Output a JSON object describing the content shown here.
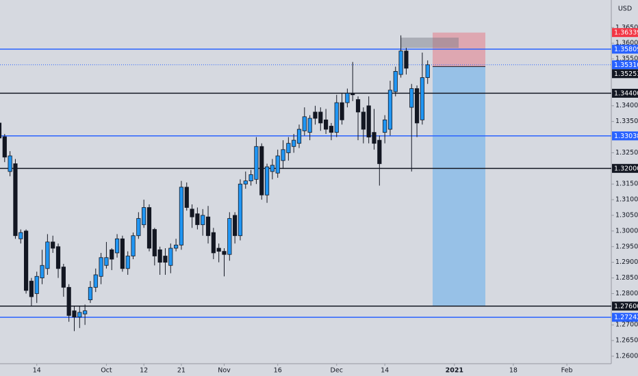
{
  "chart_data": {
    "type": "candlestick",
    "axis_unit": "USD",
    "x": [
      0,
      1,
      2,
      3,
      4,
      5,
      6,
      7,
      8,
      9,
      10,
      11,
      12,
      13,
      14,
      15,
      16,
      17,
      18,
      19,
      20,
      21,
      22,
      23,
      24,
      25,
      26,
      27,
      28,
      29,
      30,
      31,
      32,
      33,
      34,
      35,
      36,
      37,
      38,
      39,
      40,
      41,
      42,
      43,
      44,
      45,
      46,
      47,
      48,
      49,
      50,
      51,
      52,
      53,
      54,
      55,
      56,
      57,
      58,
      59,
      60,
      61,
      62,
      63,
      64,
      65,
      66,
      67,
      68,
      69,
      70,
      71,
      72,
      73,
      74,
      75,
      76,
      77,
      78,
      79,
      80
    ],
    "open": [
      1.3345,
      1.3301,
      1.319,
      1.3215,
      1.2975,
      1.3,
      1.284,
      1.28,
      1.285,
      1.288,
      1.2965,
      1.295,
      1.2885,
      1.282,
      1.2745,
      1.2725,
      1.2735,
      1.278,
      1.282,
      1.2855,
      1.289,
      1.294,
      1.293,
      1.2975,
      1.288,
      1.292,
      1.2985,
      1.302,
      1.3075,
      1.3005,
      1.294,
      1.292,
      1.289,
      1.2945,
      1.2955,
      1.314,
      1.307,
      1.3055,
      1.302,
      1.3045,
      1.2995,
      1.2945,
      1.2935,
      1.2925,
      1.305,
      1.2985,
      1.315,
      1.316,
      1.3165,
      1.327,
      1.3115,
      1.319,
      1.3185,
      1.3225,
      1.325,
      1.327,
      1.328,
      1.332,
      1.3315,
      1.338,
      1.338,
      1.3355,
      1.3335,
      1.3315,
      1.341,
      1.341,
      1.344,
      1.342,
      1.338,
      1.34,
      1.3315,
      1.329,
      1.3315,
      1.3325,
      1.3445,
      1.35,
      1.3575,
      1.3395,
      1.3455,
      1.3355,
      1.349
    ],
    "high": [
      1.3355,
      1.331,
      1.3255,
      1.323,
      1.3005,
      1.3005,
      1.285,
      1.287,
      1.294,
      1.299,
      1.2985,
      1.296,
      1.2895,
      1.283,
      1.276,
      1.276,
      1.2765,
      1.284,
      1.288,
      1.293,
      1.2965,
      1.2945,
      1.299,
      1.2985,
      1.2935,
      1.2995,
      1.306,
      1.31,
      1.3085,
      1.301,
      1.295,
      1.2945,
      1.296,
      1.2975,
      1.316,
      1.3155,
      1.3085,
      1.3075,
      1.307,
      1.308,
      1.301,
      1.296,
      1.2945,
      1.306,
      1.306,
      1.3165,
      1.319,
      1.3195,
      1.33,
      1.328,
      1.3215,
      1.323,
      1.326,
      1.329,
      1.33,
      1.331,
      1.334,
      1.3395,
      1.337,
      1.34,
      1.3395,
      1.339,
      1.3345,
      1.3435,
      1.344,
      1.3455,
      1.354,
      1.343,
      1.3395,
      1.343,
      1.339,
      1.3305,
      1.337,
      1.348,
      1.3525,
      1.3625,
      1.3585,
      1.347,
      1.3465,
      1.357,
      1.3545
    ],
    "low": [
      1.3285,
      1.322,
      1.3175,
      1.2975,
      1.296,
      1.28,
      1.276,
      1.277,
      1.283,
      1.286,
      1.293,
      1.285,
      1.279,
      1.271,
      1.268,
      1.269,
      1.27,
      1.277,
      1.2805,
      1.283,
      1.288,
      1.2875,
      1.2915,
      1.287,
      1.286,
      1.291,
      1.2975,
      1.301,
      1.2935,
      1.289,
      1.286,
      1.286,
      1.2865,
      1.2935,
      1.294,
      1.3065,
      1.301,
      1.3005,
      1.2985,
      1.296,
      1.291,
      1.29,
      1.2855,
      1.2905,
      1.296,
      1.297,
      1.3135,
      1.3145,
      1.315,
      1.31,
      1.309,
      1.3165,
      1.317,
      1.32,
      1.3225,
      1.325,
      1.3265,
      1.3305,
      1.329,
      1.334,
      1.332,
      1.331,
      1.329,
      1.33,
      1.334,
      1.3395,
      1.3415,
      1.329,
      1.328,
      1.328,
      1.326,
      1.3145,
      1.328,
      1.3305,
      1.343,
      1.349,
      1.35,
      1.319,
      1.33,
      1.334,
      1.347
    ],
    "close": [
      1.3297,
      1.3236,
      1.324,
      1.2985,
      1.2995,
      1.281,
      1.279,
      1.2855,
      1.289,
      1.2965,
      1.2945,
      1.288,
      1.282,
      1.273,
      1.2725,
      1.274,
      1.2745,
      1.282,
      1.286,
      1.2915,
      1.2915,
      1.291,
      1.2975,
      1.288,
      1.292,
      1.2985,
      1.304,
      1.3075,
      1.2945,
      1.292,
      1.29,
      1.29,
      1.2945,
      1.2955,
      1.314,
      1.3075,
      1.3045,
      1.302,
      1.305,
      1.2985,
      1.293,
      1.2935,
      1.2925,
      1.304,
      1.2985,
      1.315,
      1.316,
      1.318,
      1.327,
      1.3115,
      1.3205,
      1.321,
      1.324,
      1.326,
      1.328,
      1.329,
      1.3325,
      1.3365,
      1.336,
      1.336,
      1.3345,
      1.3325,
      1.3315,
      1.341,
      1.3355,
      1.344,
      1.3435,
      1.338,
      1.3325,
      1.33,
      1.328,
      1.3215,
      1.3355,
      1.345,
      1.351,
      1.3575,
      1.352,
      1.3455,
      1.3345,
      1.349,
      1.3531
    ],
    "up_color": "#2196f3",
    "down_color": "#131722",
    "xlim": [
      0.13,
      114.3
    ],
    "xticks": [
      {
        "value": 7,
        "label": "14"
      },
      {
        "value": 20,
        "label": "Oct"
      },
      {
        "value": 27,
        "label": "12"
      },
      {
        "value": 34,
        "label": "21"
      },
      {
        "value": 42,
        "label": "Nov"
      },
      {
        "value": 52,
        "label": "16"
      },
      {
        "value": 63,
        "label": "Dec"
      },
      {
        "value": 72,
        "label": "14"
      },
      {
        "value": 85,
        "label": "2021"
      },
      {
        "value": 96,
        "label": "18"
      },
      {
        "value": 106,
        "label": "Feb"
      }
    ],
    "ylim": [
      1.2576,
      1.3738
    ],
    "yticks": [
      {
        "value": 1.365,
        "label": "1.36500"
      },
      {
        "value": 1.36,
        "label": "1.36000"
      },
      {
        "value": 1.355,
        "label": "1.35500"
      },
      {
        "value": 1.34,
        "label": "1.34000"
      },
      {
        "value": 1.335,
        "label": "1.33500"
      },
      {
        "value": 1.325,
        "label": "1.32500"
      },
      {
        "value": 1.315,
        "label": "1.31500"
      },
      {
        "value": 1.31,
        "label": "1.31000"
      },
      {
        "value": 1.305,
        "label": "1.30500"
      },
      {
        "value": 1.3,
        "label": "1.30000"
      },
      {
        "value": 1.295,
        "label": "1.29500"
      },
      {
        "value": 1.29,
        "label": "1.29000"
      },
      {
        "value": 1.285,
        "label": "1.28500"
      },
      {
        "value": 1.28,
        "label": "1.28000"
      },
      {
        "value": 1.27,
        "label": "1.27000"
      },
      {
        "value": 1.265,
        "label": "1.26500"
      },
      {
        "value": 1.26,
        "label": "1.26000"
      }
    ],
    "levels": [
      {
        "value": 1.36339,
        "color": "#f23645",
        "style": "none"
      },
      {
        "value": 1.35809,
        "color": "#2962ff",
        "style": "solid"
      },
      {
        "value": 1.3531,
        "label": "1.35310",
        "color": "#2962ff",
        "style": "dotted"
      },
      {
        "value": 1.35253,
        "color": "#131722",
        "style": "none"
      },
      {
        "value": 1.344,
        "label": "1.34400",
        "color": "#131722",
        "style": "solid"
      },
      {
        "value": 1.33038,
        "color": "#2962ff",
        "style": "solid"
      },
      {
        "value": 1.32,
        "label": "1.32000",
        "color": "#131722",
        "style": "solid"
      },
      {
        "value": 1.276,
        "label": "1.27600",
        "color": "#131722",
        "style": "solid"
      },
      {
        "value": 1.27242,
        "color": "#2962ff",
        "style": "solid"
      }
    ],
    "position": {
      "stop": 1.36339,
      "entry": 1.35253,
      "target": 1.276
    }
  }
}
